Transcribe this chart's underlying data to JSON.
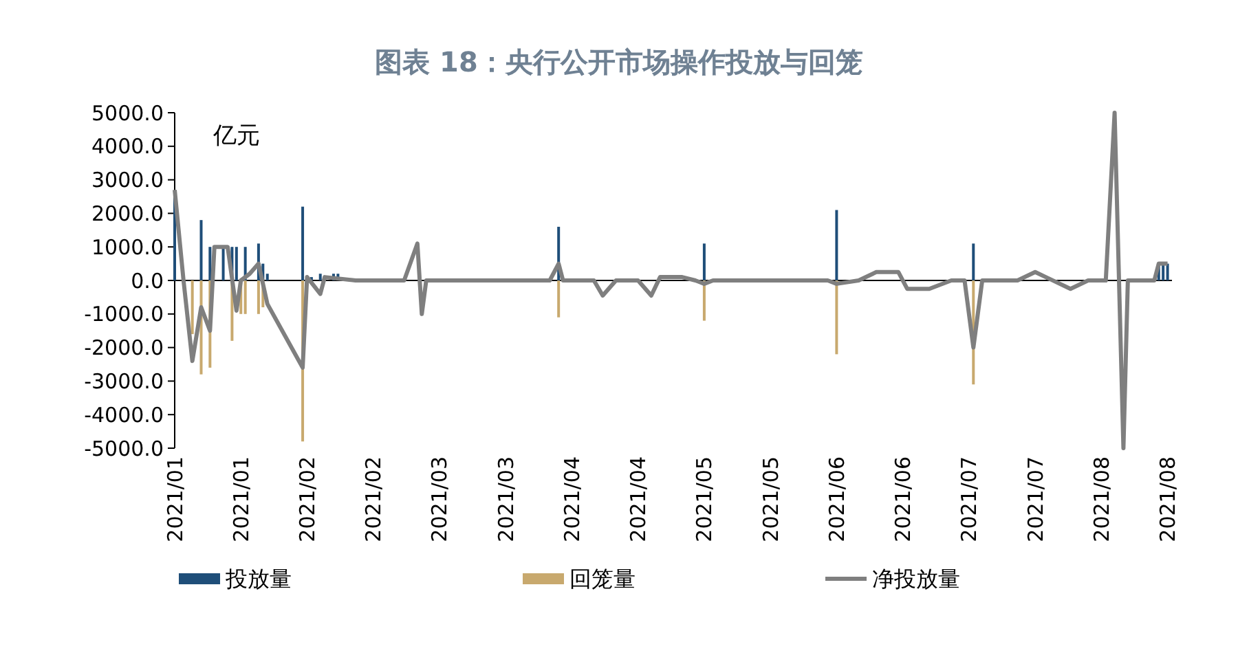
{
  "chart_data": {
    "type": "bar",
    "title": "图表 18：央行公开市场操作投放与回笼",
    "annotations": [
      {
        "text": "亿元"
      }
    ],
    "xlim": [
      "2021-01-04",
      "2021-08-18"
    ],
    "xticks": [
      {
        "value": "2021-01-04",
        "label": "2021/01"
      },
      {
        "value": "2021-01-19",
        "label": "2021/01"
      },
      {
        "value": "2021-02-03",
        "label": "2021/02"
      },
      {
        "value": "2021-02-18",
        "label": "2021/02"
      },
      {
        "value": "2021-03-05",
        "label": "2021/03"
      },
      {
        "value": "2021-03-20",
        "label": "2021/03"
      },
      {
        "value": "2021-04-04",
        "label": "2021/04"
      },
      {
        "value": "2021-04-19",
        "label": "2021/04"
      },
      {
        "value": "2021-05-04",
        "label": "2021/05"
      },
      {
        "value": "2021-05-19",
        "label": "2021/05"
      },
      {
        "value": "2021-06-03",
        "label": "2021/06"
      },
      {
        "value": "2021-06-18",
        "label": "2021/06"
      },
      {
        "value": "2021-07-03",
        "label": "2021/07"
      },
      {
        "value": "2021-07-18",
        "label": "2021/07"
      },
      {
        "value": "2021-08-02",
        "label": "2021/08"
      },
      {
        "value": "2021-08-17",
        "label": "2021/08"
      }
    ],
    "ylim": [
      -5000,
      5000
    ],
    "yticks": [
      {
        "value": -5000,
        "label": "-5000.0"
      },
      {
        "value": -4000,
        "label": "-4000.0"
      },
      {
        "value": -3000,
        "label": "-3000.0"
      },
      {
        "value": -2000,
        "label": "-2000.0"
      },
      {
        "value": -1000,
        "label": "-1000.0"
      },
      {
        "value": 0,
        "label": "0.0"
      },
      {
        "value": 1000,
        "label": "1000.0"
      },
      {
        "value": 2000,
        "label": "2000.0"
      },
      {
        "value": 3000,
        "label": "3000.0"
      },
      {
        "value": 4000,
        "label": "4000.0"
      },
      {
        "value": 5000,
        "label": "5000.0"
      }
    ],
    "legend": "bottom",
    "series": [
      {
        "name": "投放量",
        "color": "#1f4e79",
        "x": [
          "2021-01-04",
          "2021-01-10",
          "2021-01-12",
          "2021-01-15",
          "2021-01-17",
          "2021-01-18",
          "2021-01-20",
          "2021-01-23",
          "2021-01-24",
          "2021-01-25",
          "2021-02-02",
          "2021-02-04",
          "2021-02-06",
          "2021-02-09",
          "2021-02-10",
          "2021-04-01",
          "2021-05-04",
          "2021-06-03",
          "2021-07-04",
          "2021-08-15",
          "2021-08-16",
          "2021-08-17"
        ],
        "values": [
          2600,
          1800,
          1000,
          1000,
          1000,
          1000,
          1000,
          1100,
          500,
          200,
          2200,
          100,
          200,
          200,
          200,
          1600,
          1100,
          2100,
          1100,
          500,
          500,
          500
        ]
      },
      {
        "name": "回笼量",
        "color": "#c8a96e",
        "x": [
          "2021-01-08",
          "2021-01-10",
          "2021-01-12",
          "2021-01-17",
          "2021-01-19",
          "2021-01-20",
          "2021-01-23",
          "2021-01-24",
          "2021-02-02",
          "2021-04-01",
          "2021-05-04",
          "2021-06-03",
          "2021-07-04"
        ],
        "values": [
          -1600,
          -2800,
          -2600,
          -1800,
          -1000,
          -1000,
          -1000,
          -800,
          -4800,
          -1100,
          -1200,
          -2200,
          -3100
        ]
      },
      {
        "name": "净投放量",
        "type": "line",
        "color": "#7f7f7f",
        "x": [
          "2021-01-04",
          "2021-01-06",
          "2021-01-08",
          "2021-01-10",
          "2021-01-12",
          "2021-01-13",
          "2021-01-16",
          "2021-01-18",
          "2021-01-19",
          "2021-01-21",
          "2021-01-23",
          "2021-01-25",
          "2021-02-02",
          "2021-02-03",
          "2021-02-06",
          "2021-02-07",
          "2021-02-14",
          "2021-02-25",
          "2021-02-28",
          "2021-03-01",
          "2021-03-02",
          "2021-03-17",
          "2021-03-30",
          "2021-04-01",
          "2021-04-02",
          "2021-04-09",
          "2021-04-11",
          "2021-04-14",
          "2021-04-19",
          "2021-04-22",
          "2021-04-24",
          "2021-04-29",
          "2021-05-02",
          "2021-05-04",
          "2021-05-06",
          "2021-06-01",
          "2021-06-03",
          "2021-06-08",
          "2021-06-12",
          "2021-06-17",
          "2021-06-19",
          "2021-06-24",
          "2021-06-29",
          "2021-07-02",
          "2021-07-04",
          "2021-07-06",
          "2021-07-14",
          "2021-07-18",
          "2021-07-26",
          "2021-07-30",
          "2021-08-03",
          "2021-08-05",
          "2021-08-07",
          "2021-08-08",
          "2021-08-14",
          "2021-08-15",
          "2021-08-17"
        ],
        "values": [
          2700,
          0,
          -2400,
          -800,
          -1500,
          1000,
          1000,
          -900,
          0,
          200,
          500,
          -700,
          -2600,
          100,
          -400,
          100,
          0,
          0,
          1100,
          -1000,
          0,
          0,
          0,
          500,
          0,
          0,
          -450,
          0,
          0,
          -450,
          100,
          100,
          0,
          -100,
          0,
          0,
          -100,
          0,
          250,
          250,
          -250,
          -250,
          0,
          0,
          -2000,
          0,
          0,
          250,
          -250,
          0,
          0,
          5000,
          -5000,
          0,
          0,
          500,
          500
        ]
      }
    ]
  }
}
